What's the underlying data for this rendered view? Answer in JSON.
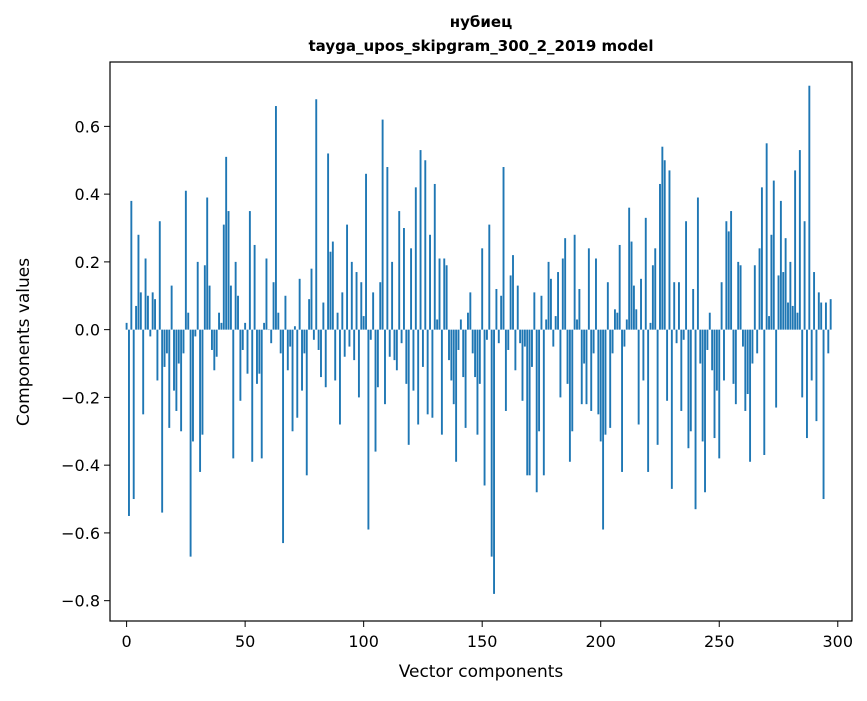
{
  "chart_data": {
    "type": "bar",
    "title": "нубиец",
    "subtitle": "tayga_upos_skipgram_300_2_2019 model",
    "xlabel": "Vector components",
    "ylabel": "Components values",
    "xlim": [
      -7,
      306
    ],
    "ylim": [
      -0.86,
      0.79
    ],
    "xticks": [
      0,
      50,
      100,
      150,
      200,
      250,
      300
    ],
    "xtick_labels": [
      "0",
      "50",
      "100",
      "150",
      "200",
      "250",
      "300"
    ],
    "yticks": [
      -0.8,
      -0.6,
      -0.4,
      -0.2,
      0.0,
      0.2,
      0.4,
      0.6
    ],
    "ytick_labels": [
      "−0.8",
      "−0.6",
      "−0.4",
      "−0.2",
      "0.0",
      "0.2",
      "0.4",
      "0.6"
    ],
    "grid": false,
    "bar_color": "#1f77b4",
    "x_start": 0,
    "values": [
      0.02,
      -0.55,
      0.38,
      -0.5,
      0.07,
      0.28,
      0.11,
      -0.25,
      0.21,
      0.1,
      -0.02,
      0.11,
      0.09,
      -0.15,
      0.32,
      -0.54,
      -0.11,
      -0.07,
      -0.29,
      0.13,
      -0.18,
      -0.24,
      -0.1,
      -0.3,
      -0.07,
      0.41,
      0.05,
      -0.67,
      -0.33,
      -0.02,
      0.2,
      -0.42,
      -0.31,
      0.19,
      0.39,
      0.13,
      -0.06,
      -0.12,
      -0.08,
      0.05,
      0.02,
      0.31,
      0.51,
      0.35,
      0.13,
      -0.38,
      0.2,
      0.1,
      -0.21,
      -0.06,
      0.02,
      -0.13,
      0.35,
      -0.39,
      0.25,
      -0.16,
      -0.13,
      -0.38,
      0.02,
      0.21,
      0.0,
      -0.04,
      0.14,
      0.66,
      0.05,
      -0.07,
      -0.63,
      0.1,
      -0.12,
      -0.05,
      -0.3,
      0.01,
      -0.26,
      0.15,
      -0.18,
      -0.07,
      -0.43,
      0.09,
      0.18,
      -0.03,
      0.68,
      -0.06,
      -0.14,
      0.08,
      -0.17,
      0.52,
      0.23,
      0.26,
      -0.15,
      0.05,
      -0.28,
      0.11,
      -0.08,
      0.31,
      -0.05,
      0.2,
      -0.09,
      0.17,
      -0.2,
      0.14,
      0.04,
      0.46,
      -0.59,
      -0.03,
      0.11,
      -0.36,
      -0.17,
      0.14,
      0.62,
      -0.22,
      0.48,
      -0.08,
      0.2,
      -0.09,
      -0.12,
      0.35,
      -0.04,
      0.3,
      -0.16,
      -0.34,
      0.24,
      -0.18,
      0.42,
      -0.28,
      0.53,
      -0.11,
      0.5,
      -0.25,
      0.28,
      -0.26,
      0.43,
      0.03,
      0.21,
      -0.31,
      0.21,
      0.19,
      -0.09,
      -0.15,
      -0.22,
      -0.39,
      -0.06,
      0.03,
      -0.14,
      -0.29,
      0.05,
      0.11,
      -0.07,
      -0.14,
      -0.31,
      -0.16,
      0.24,
      -0.46,
      -0.03,
      0.31,
      -0.67,
      -0.78,
      0.12,
      -0.04,
      0.1,
      0.48,
      -0.24,
      -0.06,
      0.16,
      0.22,
      -0.12,
      0.13,
      -0.04,
      -0.21,
      -0.05,
      -0.43,
      -0.43,
      -0.11,
      0.11,
      -0.48,
      -0.3,
      0.1,
      -0.43,
      0.03,
      0.2,
      0.15,
      -0.05,
      0.04,
      0.17,
      -0.2,
      0.21,
      0.27,
      -0.16,
      -0.39,
      -0.3,
      0.28,
      0.03,
      0.12,
      -0.22,
      -0.1,
      -0.22,
      0.24,
      -0.24,
      -0.07,
      0.21,
      -0.25,
      -0.33,
      -0.59,
      -0.31,
      0.14,
      -0.29,
      -0.07,
      0.06,
      0.05,
      0.25,
      -0.42,
      -0.05,
      0.03,
      0.36,
      0.26,
      0.13,
      0.06,
      -0.28,
      0.15,
      -0.15,
      0.33,
      -0.42,
      0.02,
      0.19,
      0.24,
      -0.34,
      0.43,
      0.54,
      0.5,
      -0.21,
      0.47,
      -0.47,
      0.14,
      -0.04,
      0.14,
      -0.24,
      -0.03,
      0.32,
      -0.35,
      -0.3,
      0.12,
      -0.53,
      0.39,
      -0.1,
      -0.33,
      -0.48,
      -0.06,
      0.05,
      -0.12,
      -0.32,
      -0.18,
      -0.38,
      0.14,
      -0.15,
      0.32,
      0.29,
      0.35,
      -0.16,
      -0.22,
      0.2,
      0.19,
      -0.05,
      -0.24,
      -0.19,
      -0.39,
      -0.1,
      0.19,
      -0.07,
      0.24,
      0.42,
      -0.37,
      0.55,
      0.04,
      0.28,
      0.44,
      -0.23,
      0.16,
      0.38,
      0.17,
      0.27,
      0.08,
      0.2,
      0.07,
      0.47,
      0.05,
      0.53,
      -0.2,
      0.32,
      -0.32,
      0.72,
      -0.15,
      0.17,
      -0.27,
      0.11,
      0.08,
      -0.5,
      0.08,
      -0.07,
      0.09
    ]
  }
}
